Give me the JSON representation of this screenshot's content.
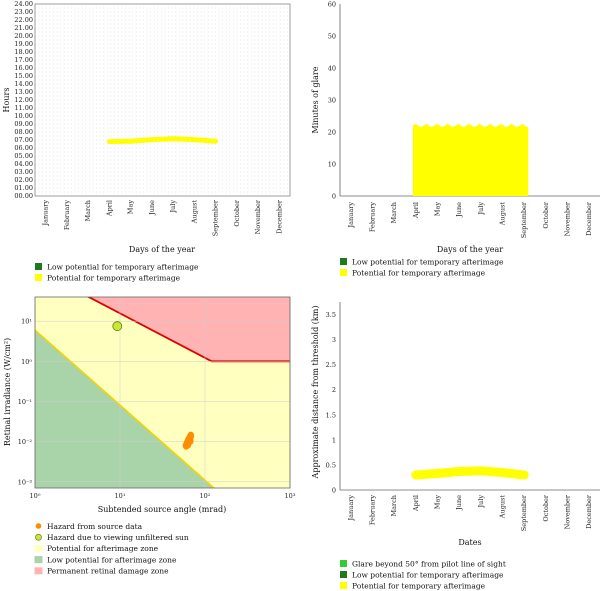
{
  "chart_data": [
    {
      "type": "scatter",
      "xlabel": "Days of the year",
      "ylabel": "Hours",
      "months": [
        "January",
        "February",
        "March",
        "April",
        "May",
        "June",
        "July",
        "August",
        "September",
        "October",
        "November",
        "December"
      ],
      "y_ticks": [
        "00.00",
        "01.00",
        "02.00",
        "03.00",
        "04.00",
        "05.00",
        "06.00",
        "07.00",
        "08.00",
        "09.00",
        "10.00",
        "11.00",
        "12.00",
        "13.00",
        "14.00",
        "15.00",
        "16.00",
        "17.00",
        "18.00",
        "19.00",
        "20.00",
        "21.00",
        "22.00",
        "23.00",
        "24.00"
      ],
      "ylim": [
        0,
        24
      ],
      "xlim": [
        "January",
        "December"
      ],
      "series": [
        {
          "color": "#ffff00",
          "x": [
            "April",
            "May",
            "June",
            "July",
            "August",
            "September"
          ],
          "y": [
            6.8,
            6.85,
            7.05,
            7.15,
            7.05,
            6.85
          ]
        }
      ],
      "legend": [
        {
          "label": "Low potential for temporary afterimage",
          "color": "#1f7a1f"
        },
        {
          "label": "Potential for temporary afterimage",
          "color": "#ffff00"
        }
      ]
    },
    {
      "type": "bar",
      "xlabel": "Days of the year",
      "ylabel": "Minutes of glare",
      "months": [
        "January",
        "February",
        "March",
        "April",
        "May",
        "June",
        "July",
        "August",
        "September",
        "October",
        "November",
        "December"
      ],
      "y_ticks": [
        "0",
        "10",
        "20",
        "30",
        "40",
        "50",
        "60"
      ],
      "ylim": [
        0,
        60
      ],
      "series": [
        {
          "color": "#ffff00",
          "x": [
            "April",
            "September"
          ],
          "value": 22
        }
      ],
      "legend": [
        {
          "label": "Low potential for temporary afterimage",
          "color": "#1f7a1f"
        },
        {
          "label": "Potential for temporary afterimage",
          "color": "#ffff00"
        }
      ]
    },
    {
      "type": "scatter",
      "xlabel": "Subtended source angle (mrad)",
      "ylabel": "Retinal irradiance (W/cm²)",
      "x_scale": "log",
      "y_scale": "log",
      "xlim": [
        1,
        1000
      ],
      "ylim": [
        0.0007,
        40
      ],
      "x_ticks": [
        "10⁰",
        "10¹",
        "10²",
        "10³"
      ],
      "y_ticks": [
        "10⁻³",
        "10⁻²",
        "10⁻¹",
        "10⁰",
        "10¹"
      ],
      "points": {
        "source_data": [
          [
            60,
            0.008
          ],
          [
            62,
            0.0095
          ],
          [
            64,
            0.011
          ],
          [
            66,
            0.0125
          ],
          [
            68,
            0.014
          ],
          [
            63,
            0.0085
          ],
          [
            67,
            0.0105
          ]
        ],
        "unfiltered_sun": [
          9.3,
          7.5
        ]
      },
      "legend": [
        {
          "label": "Hazard from source data",
          "color": "#ff8c00"
        },
        {
          "label": "Hazard due to viewing unfiltered sun",
          "color": "#c8e63c"
        },
        {
          "label": "Potential for afterimage zone",
          "color": "#ffffc0"
        },
        {
          "label": "Low potential for afterimage zone",
          "color": "#a9d3a9"
        },
        {
          "label": "Permanent retinal damage zone",
          "color": "#ffb3b3"
        }
      ]
    },
    {
      "type": "area",
      "xlabel": "Dates",
      "ylabel": "Approximate distance from threshold (km)",
      "months": [
        "January",
        "February",
        "March",
        "April",
        "May",
        "June",
        "July",
        "August",
        "September",
        "October",
        "November",
        "December"
      ],
      "y_ticks": [
        "0",
        "0.5",
        "1",
        "1.5",
        "2",
        "2.5",
        "3",
        "3.5"
      ],
      "ylim": [
        0,
        3.75
      ],
      "series": [
        {
          "color": "#ffff00",
          "x": [
            "April",
            "May",
            "June",
            "July",
            "August",
            "September"
          ],
          "y": [
            0.3,
            0.33,
            0.37,
            0.38,
            0.35,
            0.3
          ]
        }
      ],
      "legend": [
        {
          "label": "Glare beyond 50° from pilot line of sight",
          "color": "#33cc33"
        },
        {
          "label": "Low potential for temporary afterimage",
          "color": "#1f7a1f"
        },
        {
          "label": "Potential for temporary afterimage",
          "color": "#ffff00"
        }
      ]
    }
  ]
}
